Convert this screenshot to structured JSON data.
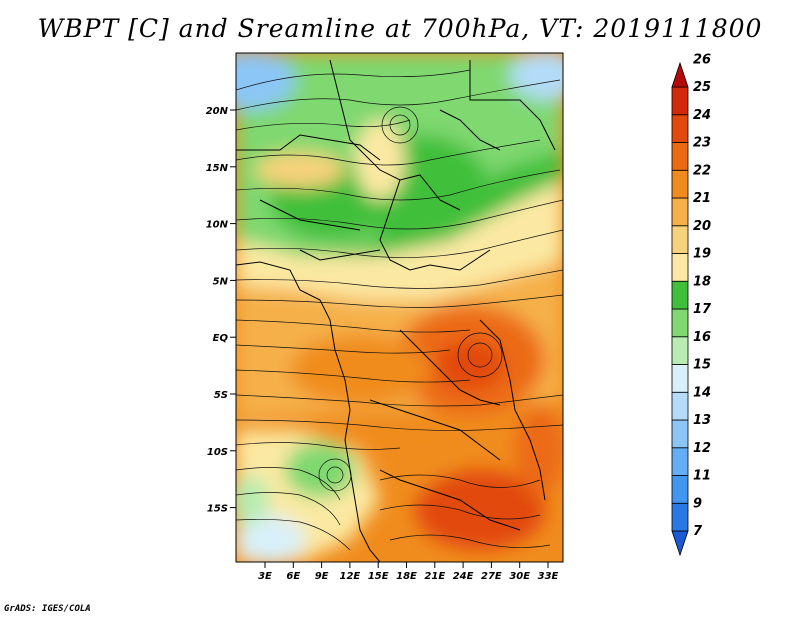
{
  "title": "WBPT [C] and Sreamline at 700hPa, VT: 2019111800",
  "footer": "GrADS: IGES/COLA",
  "map": {
    "latitude_labels": [
      "20N",
      "15N",
      "10N",
      "5N",
      "EQ",
      "5S",
      "10S",
      "15S"
    ],
    "longitude_labels": [
      "3E",
      "6E",
      "9E",
      "12E",
      "15E",
      "18E",
      "21E",
      "24E",
      "27E",
      "30E",
      "33E"
    ],
    "legend": {
      "labels": [
        "7",
        "9",
        "11",
        "12",
        "13",
        "14",
        "15",
        "16",
        "17",
        "18",
        "19",
        "20",
        "21",
        "22",
        "23",
        "24",
        "25",
        "26"
      ],
      "colors": [
        "#1a5ad6",
        "#2a78e4",
        "#4196f0",
        "#63aef4",
        "#8cc6f7",
        "#b4dcf9",
        "#d9f0fa",
        "#b8ecb2",
        "#7fd86f",
        "#3fbf3a",
        "#fbe9a3",
        "#f7d27c",
        "#f5b048",
        "#f08c1e",
        "#ec6a12",
        "#e24a0d",
        "#d4280c",
        "#b40a0a"
      ]
    }
  }
}
